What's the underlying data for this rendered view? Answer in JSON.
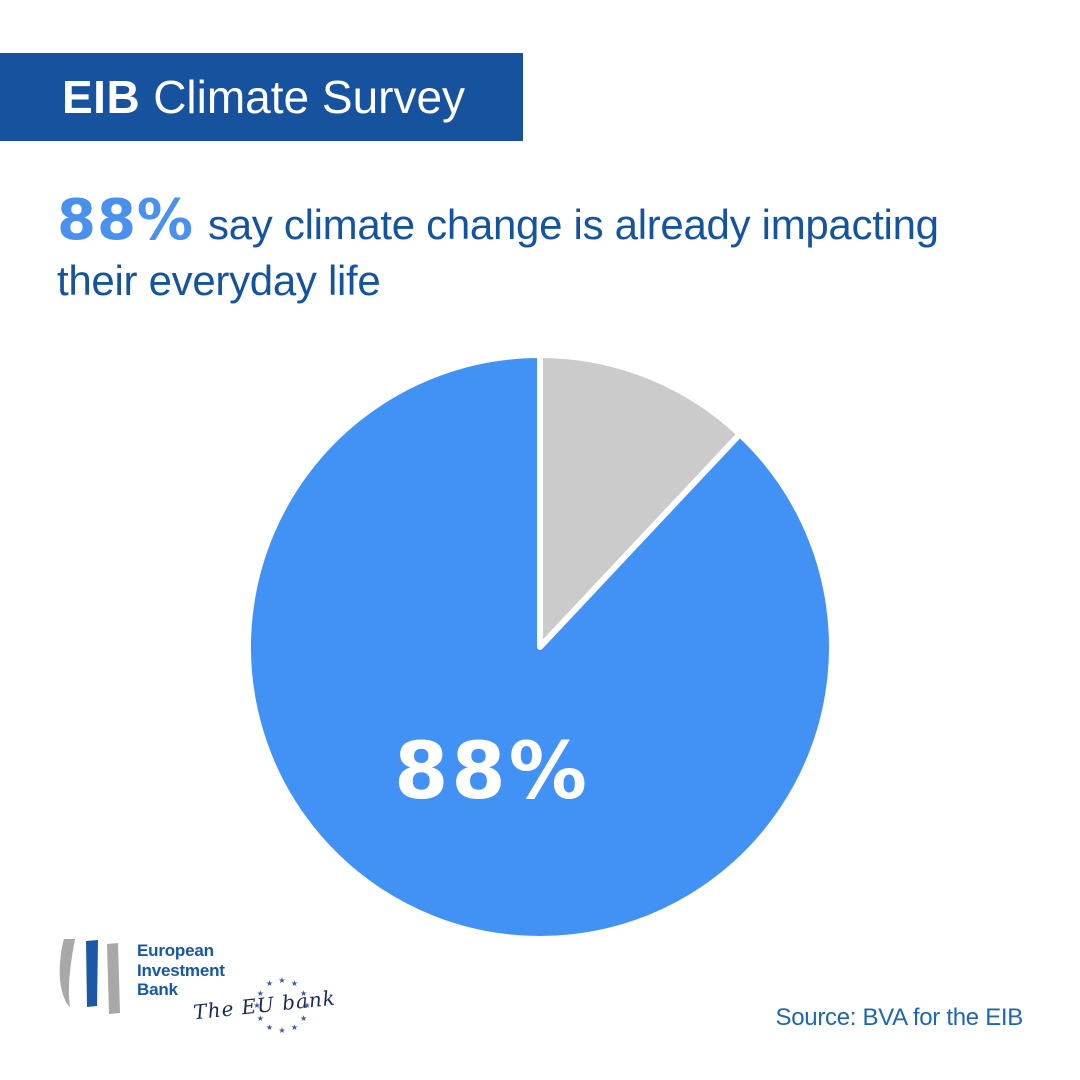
{
  "header": {
    "brand": "EIB",
    "title": "Climate Survey"
  },
  "headline": {
    "stat": "88%",
    "line1": "say climate change is already impacting",
    "line2": "their everyday life"
  },
  "chart_data": {
    "type": "pie",
    "title": "88% say climate change is already impacting their everyday life",
    "values": [
      12,
      88
    ],
    "colors": [
      "#CBCBCB",
      "#4292F5"
    ],
    "start_angle_deg": 0,
    "direction": "clockwise",
    "center_label": "88%",
    "highlight_value": 88,
    "legend": "none",
    "slice_border_color": "#FFFFFF"
  },
  "logo": {
    "line1": "European",
    "line2": "Investment",
    "line3": "Bank",
    "tagline": "The EU bank",
    "star_glyph": "★",
    "star_count": 12
  },
  "footer": {
    "source": "Source: BVA for the EIB"
  },
  "colors": {
    "header_bar": "#17529E",
    "header_text": "#FFFFFF",
    "headline_text": "#14549E",
    "accent_blue": "#4A91EE",
    "pie_blue": "#4292F5",
    "pie_gray": "#CBCBCB",
    "pie_label": "#FFFFFF",
    "logo_blue": "#1B58A5",
    "logo_gray": "#A8A8A8",
    "source_text": "#1E67B0"
  }
}
